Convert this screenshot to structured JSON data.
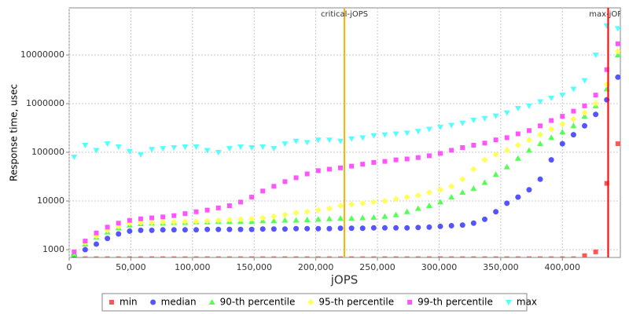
{
  "chart_data": {
    "type": "scatter",
    "xlabel": "jOPS",
    "ylabel": "Response time, usec",
    "xlim": [
      0,
      447000
    ],
    "ylim": [
      690,
      93000000
    ],
    "log_y": true,
    "grid": true,
    "xticks": [
      0,
      {
        "value": 50000,
        "label": "50,000"
      },
      {
        "value": 100000,
        "label": "100,000"
      },
      {
        "value": 150000,
        "label": "150,000"
      },
      {
        "value": 200000,
        "label": "200,000"
      },
      {
        "value": 250000,
        "label": "250,000"
      },
      {
        "value": 300000,
        "label": "300,000"
      },
      {
        "value": 350000,
        "label": "350,000"
      },
      {
        "value": 400000,
        "label": "400,000"
      }
    ],
    "yticks": [
      1000,
      10000,
      100000,
      1000000,
      10000000
    ],
    "annotations": [
      {
        "label": "critical-jOPS",
        "x": 223200,
        "color": "#ffb300"
      },
      {
        "label": "max-jOPS",
        "x": 437100,
        "color": "#ff0000"
      }
    ],
    "legend": "bottom",
    "x": [
      4000,
      13000,
      22000,
      31000,
      40000,
      49000,
      58000,
      67000,
      76000,
      85000,
      94000,
      103000,
      112000,
      121000,
      130000,
      139000,
      148000,
      157000,
      166000,
      175000,
      184000,
      193000,
      202000,
      211000,
      220000,
      229000,
      238000,
      247000,
      256000,
      265000,
      274000,
      283000,
      292000,
      301000,
      310000,
      319000,
      328000,
      337000,
      346000,
      355000,
      364000,
      373000,
      382000,
      391000,
      400000,
      409000,
      418000,
      427000,
      436000,
      445000
    ],
    "series": [
      {
        "name": "min",
        "color": "#ff5555",
        "marker": "square",
        "values": [
          650,
          650,
          650,
          650,
          650,
          650,
          650,
          650,
          650,
          650,
          650,
          650,
          650,
          650,
          650,
          650,
          650,
          650,
          650,
          650,
          650,
          650,
          650,
          650,
          650,
          650,
          650,
          650,
          650,
          650,
          650,
          650,
          650,
          650,
          650,
          650,
          650,
          650,
          650,
          650,
          650,
          650,
          650,
          650,
          650,
          650,
          750,
          900,
          23000,
          150000
        ]
      },
      {
        "name": "median",
        "color": "#5555ff",
        "marker": "circle",
        "values": [
          750,
          1000,
          1300,
          1700,
          2100,
          2400,
          2500,
          2500,
          2550,
          2550,
          2550,
          2550,
          2600,
          2600,
          2600,
          2600,
          2600,
          2650,
          2650,
          2650,
          2700,
          2700,
          2700,
          2700,
          2750,
          2750,
          2750,
          2800,
          2800,
          2800,
          2800,
          2850,
          2900,
          3000,
          3100,
          3200,
          3500,
          4200,
          6000,
          9000,
          12000,
          17000,
          28000,
          70000,
          150000,
          230000,
          350000,
          600000,
          1200000,
          3500000
        ]
      },
      {
        "name": "90-th percentile",
        "color": "#55ff55",
        "marker": "triangle-up",
        "values": [
          800,
          1300,
          1800,
          2300,
          2800,
          3200,
          3400,
          3500,
          3500,
          3600,
          3600,
          3700,
          3700,
          3800,
          3800,
          3800,
          3800,
          3900,
          3900,
          4000,
          4000,
          4100,
          4200,
          4300,
          4400,
          4400,
          4500,
          4600,
          4800,
          5200,
          6000,
          7000,
          8000,
          9500,
          12000,
          15000,
          18000,
          24000,
          35000,
          50000,
          75000,
          110000,
          150000,
          200000,
          260000,
          350000,
          550000,
          900000,
          2000000,
          10000000
        ]
      },
      {
        "name": "95-th percentile",
        "color": "#ffff55",
        "marker": "diamond",
        "values": [
          900,
          1400,
          1900,
          2500,
          3000,
          3500,
          3600,
          3600,
          3700,
          3700,
          3800,
          3800,
          3900,
          4000,
          4100,
          4200,
          4300,
          4500,
          4800,
          5200,
          5700,
          6000,
          6500,
          7000,
          8000,
          8500,
          9000,
          9500,
          10000,
          11000,
          12000,
          13000,
          15000,
          17000,
          20000,
          28000,
          45000,
          70000,
          90000,
          110000,
          140000,
          180000,
          230000,
          300000,
          380000,
          480000,
          650000,
          1000000,
          2500000,
          12000000
        ]
      },
      {
        "name": "99-th percentile",
        "color": "#ff55ff",
        "marker": "square",
        "values": [
          900,
          1500,
          2200,
          2900,
          3500,
          4000,
          4300,
          4500,
          4700,
          5000,
          5500,
          6000,
          6500,
          7200,
          8000,
          9500,
          12000,
          16000,
          20000,
          25000,
          30000,
          36000,
          42000,
          45000,
          48000,
          52000,
          57000,
          62000,
          65000,
          70000,
          73000,
          78000,
          85000,
          95000,
          110000,
          125000,
          140000,
          155000,
          180000,
          200000,
          240000,
          280000,
          350000,
          450000,
          550000,
          700000,
          900000,
          1500000,
          5000000,
          17000000
        ]
      },
      {
        "name": "max",
        "color": "#55ffff",
        "marker": "triangle-down",
        "values": [
          80000,
          140000,
          110000,
          150000,
          130000,
          105000,
          90000,
          115000,
          120000,
          125000,
          130000,
          130000,
          110000,
          100000,
          120000,
          130000,
          125000,
          130000,
          120000,
          150000,
          170000,
          160000,
          180000,
          180000,
          170000,
          190000,
          200000,
          220000,
          230000,
          240000,
          250000,
          270000,
          300000,
          330000,
          360000,
          400000,
          460000,
          500000,
          560000,
          650000,
          800000,
          900000,
          1100000,
          1300000,
          1500000,
          2000000,
          3000000,
          10000000,
          40000000,
          35000000
        ]
      }
    ]
  }
}
